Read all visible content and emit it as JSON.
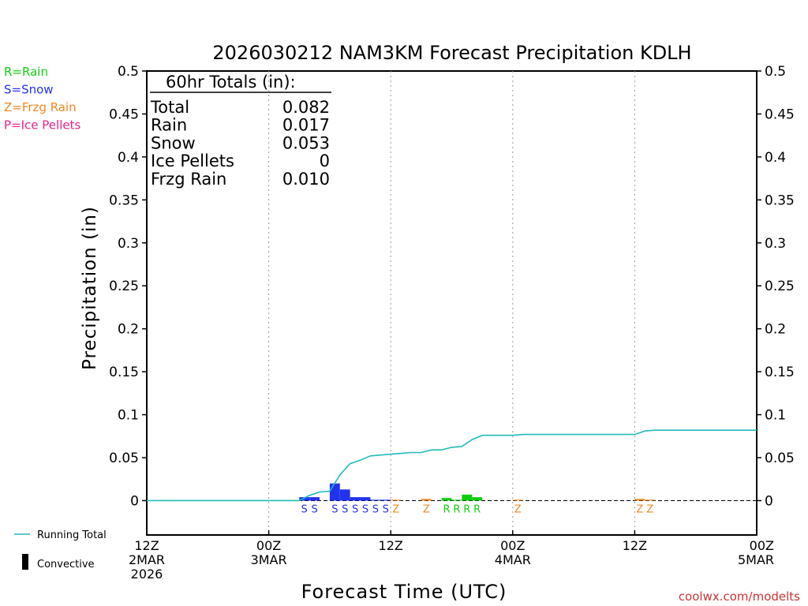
{
  "chart_data": {
    "type": "bar",
    "title": "2026030212 NAM3KM Forecast Precipitation KDLH",
    "ylabel": "Precipitation (in)",
    "xlabel": "Forecast Time (UTC)",
    "ylim": [
      -0.04,
      0.5
    ],
    "yticks": [
      0,
      0.05,
      0.1,
      0.15,
      0.2,
      0.25,
      0.3,
      0.35,
      0.4,
      0.45,
      0.5
    ],
    "ytick_labels": [
      "0",
      "0.05",
      "0.1",
      "0.15",
      "0.2",
      "0.25",
      "0.3",
      "0.35",
      "0.4",
      "0.45",
      "0.5"
    ],
    "xlim_hours": [
      0,
      60
    ],
    "xticks": [
      {
        "hour": 0,
        "lines": [
          "12Z",
          "2MAR",
          "2026"
        ]
      },
      {
        "hour": 12,
        "lines": [
          "00Z",
          "3MAR"
        ]
      },
      {
        "hour": 24,
        "lines": [
          "12Z"
        ]
      },
      {
        "hour": 36,
        "lines": [
          "00Z",
          "4MAR"
        ]
      },
      {
        "hour": 48,
        "lines": [
          "12Z"
        ]
      },
      {
        "hour": 60,
        "lines": [
          "00Z",
          "5MAR"
        ]
      }
    ],
    "colors": {
      "rain": "#11cc11",
      "snow": "#2233ee",
      "freezing_rain": "#ee8822",
      "ice_pellets": "#ee2288",
      "running_total": "#22bbbb",
      "convective": "#000000",
      "text": "#000000",
      "credit": "#cc3333"
    },
    "legend_types": [
      {
        "label": "R=Rain",
        "key": "rain"
      },
      {
        "label": "S=Snow",
        "key": "snow"
      },
      {
        "label": "Z=Frzg Rain",
        "key": "freezing_rain"
      },
      {
        "label": "P=Ice Pellets",
        "key": "ice_pellets"
      }
    ],
    "legend_lines": {
      "running_total": "Running Total",
      "convective": "Convective"
    },
    "totals": {
      "header": "60hr Totals (in):",
      "rows": [
        {
          "label": "Total",
          "value": "0.082"
        },
        {
          "label": "Rain",
          "value": "0.017"
        },
        {
          "label": "Snow",
          "value": "0.053"
        },
        {
          "label": "Ice Pellets",
          "value": "0"
        },
        {
          "label": "Frzg Rain",
          "value": "0.010"
        }
      ]
    },
    "bars": [
      {
        "hour": 16,
        "value": 0.004,
        "type": "snow"
      },
      {
        "hour": 17,
        "value": 0.004,
        "type": "snow"
      },
      {
        "hour": 19,
        "value": 0.02,
        "type": "snow"
      },
      {
        "hour": 20,
        "value": 0.013,
        "type": "snow"
      },
      {
        "hour": 21,
        "value": 0.004,
        "type": "snow"
      },
      {
        "hour": 22,
        "value": 0.004,
        "type": "snow"
      },
      {
        "hour": 23,
        "value": 0.001,
        "type": "snow"
      },
      {
        "hour": 24,
        "value": 0.001,
        "type": "snow"
      },
      {
        "hour": 25,
        "value": 0.001,
        "type": "freezing_rain"
      },
      {
        "hour": 28,
        "value": 0.002,
        "type": "freezing_rain"
      },
      {
        "hour": 30,
        "value": 0.003,
        "type": "rain"
      },
      {
        "hour": 31,
        "value": 0.001,
        "type": "rain"
      },
      {
        "hour": 32,
        "value": 0.007,
        "type": "rain"
      },
      {
        "hour": 33,
        "value": 0.004,
        "type": "rain"
      },
      {
        "hour": 37,
        "value": 0.001,
        "type": "freezing_rain"
      },
      {
        "hour": 49,
        "value": 0.002,
        "type": "freezing_rain"
      },
      {
        "hour": 50,
        "value": 0.001,
        "type": "freezing_rain"
      }
    ],
    "type_markers": [
      {
        "hour": 16,
        "letter": "S",
        "type": "snow"
      },
      {
        "hour": 17,
        "letter": "S",
        "type": "snow"
      },
      {
        "hour": 19,
        "letter": "S",
        "type": "snow"
      },
      {
        "hour": 20,
        "letter": "S",
        "type": "snow"
      },
      {
        "hour": 21,
        "letter": "S",
        "type": "snow"
      },
      {
        "hour": 22,
        "letter": "S",
        "type": "snow"
      },
      {
        "hour": 23,
        "letter": "S",
        "type": "snow"
      },
      {
        "hour": 24,
        "letter": "S",
        "type": "snow"
      },
      {
        "hour": 25,
        "letter": "Z",
        "type": "freezing_rain"
      },
      {
        "hour": 28,
        "letter": "Z",
        "type": "freezing_rain"
      },
      {
        "hour": 30,
        "letter": "R",
        "type": "rain"
      },
      {
        "hour": 31,
        "letter": "R",
        "type": "rain"
      },
      {
        "hour": 32,
        "letter": "R",
        "type": "rain"
      },
      {
        "hour": 33,
        "letter": "R",
        "type": "rain"
      },
      {
        "hour": 37,
        "letter": "Z",
        "type": "freezing_rain"
      },
      {
        "hour": 49,
        "letter": "Z",
        "type": "freezing_rain"
      },
      {
        "hour": 50,
        "letter": "Z",
        "type": "freezing_rain"
      }
    ],
    "running_total": {
      "hours": [
        0,
        15,
        16,
        17,
        18,
        19,
        20,
        21,
        22,
        23,
        24,
        25,
        26,
        27,
        28,
        29,
        30,
        31,
        32,
        33,
        34,
        35,
        36,
        37,
        38,
        39,
        40,
        41,
        42,
        43,
        44,
        45,
        46,
        47,
        48,
        49,
        50,
        51,
        52,
        53,
        54,
        55,
        56,
        57,
        58,
        59,
        60
      ],
      "values": [
        0,
        0,
        0.006,
        0.01,
        0.011,
        0.03,
        0.043,
        0.047,
        0.052,
        0.053,
        0.054,
        0.055,
        0.056,
        0.056,
        0.059,
        0.059,
        0.062,
        0.063,
        0.071,
        0.076,
        0.076,
        0.076,
        0.076,
        0.077,
        0.077,
        0.077,
        0.077,
        0.077,
        0.077,
        0.077,
        0.077,
        0.077,
        0.077,
        0.077,
        0.077,
        0.081,
        0.082,
        0.082,
        0.082,
        0.082,
        0.082,
        0.082,
        0.082,
        0.082,
        0.082,
        0.082,
        0.082
      ]
    },
    "credit": "coolwx.com/modelts"
  }
}
